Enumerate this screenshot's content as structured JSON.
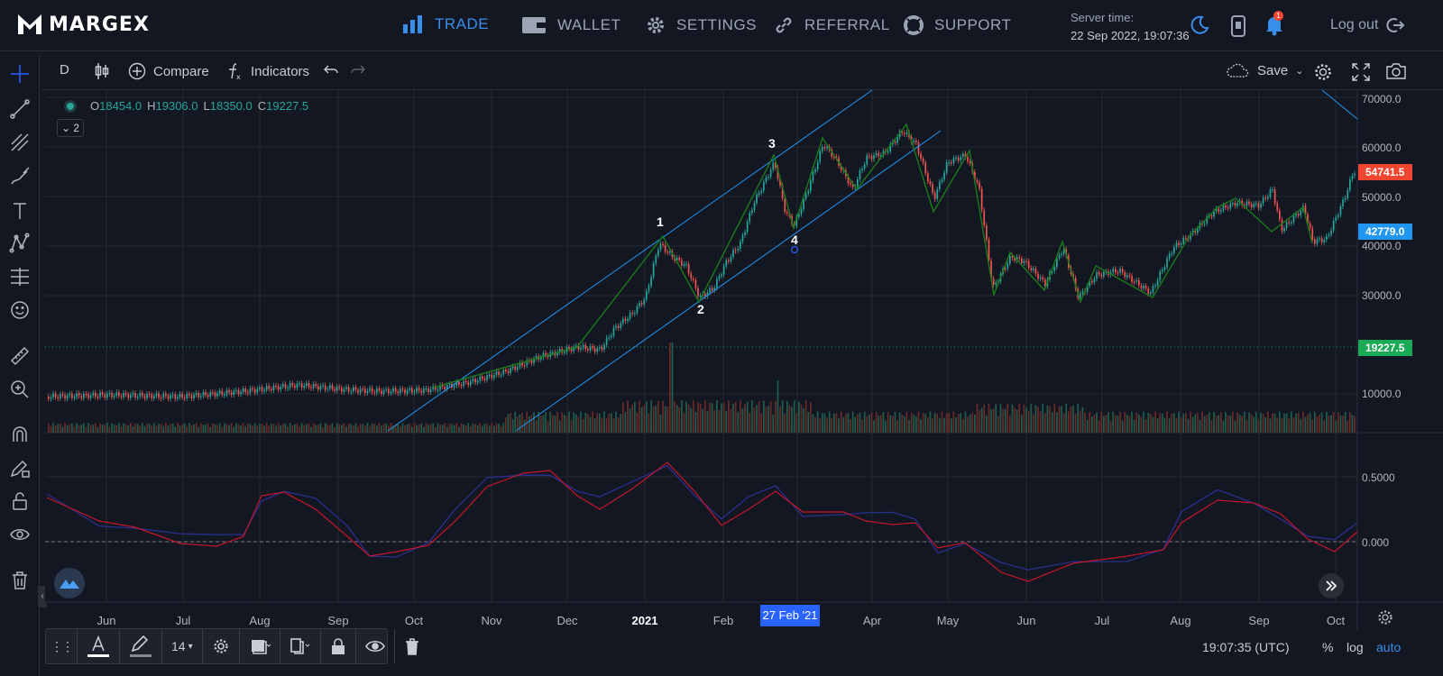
{
  "brand": {
    "name": "MARGEX"
  },
  "nav": [
    {
      "label": "TRADE",
      "icon": "bars-chart-icon",
      "active": true
    },
    {
      "label": "WALLET",
      "icon": "wallet-icon"
    },
    {
      "label": "SETTINGS",
      "icon": "gear-icon"
    },
    {
      "label": "REFERRAL",
      "icon": "link-icon"
    },
    {
      "label": "SUPPORT",
      "icon": "lifebuoy-icon"
    }
  ],
  "server": {
    "label": "Server time:",
    "value": "22 Sep 2022, 19:07:36"
  },
  "notifications": {
    "count": "1"
  },
  "logout": {
    "label": "Log out"
  },
  "toolbar": {
    "interval": "D",
    "compare": "Compare",
    "indicators": "Indicators",
    "save": "Save"
  },
  "legend": {
    "open_key": "O",
    "open": "18454.0",
    "high_key": "H",
    "high": "19306.0",
    "low_key": "L",
    "low": "18350.0",
    "close_key": "C",
    "close": "19227.5",
    "collapse_count": "2"
  },
  "price_axis": {
    "labels": [
      "70000.0",
      "60000.0",
      "50000.0",
      "40000.0",
      "30000.0",
      "10000.0"
    ],
    "indicator_labels": [
      "0.5000",
      "0.000"
    ],
    "tag_red": "54741.5",
    "tag_blue": "42779.0",
    "tag_green": "19227.5"
  },
  "time_axis": {
    "labels": [
      "Jun",
      "Jul",
      "Aug",
      "Sep",
      "Oct",
      "Nov",
      "Dec",
      "2021",
      "Feb",
      "Apr",
      "May",
      "Jun",
      "Jul",
      "Aug",
      "Sep",
      "Oct"
    ],
    "crosshair": "27 Feb '21"
  },
  "waves": [
    "1",
    "2",
    "3",
    "4"
  ],
  "drawing_bar": {
    "font_size": "14"
  },
  "status": {
    "time": "19:07:35 (UTC)",
    "percent": "%",
    "log": "log",
    "auto": "auto"
  },
  "colors": {
    "accent": "#3a8eeb",
    "up": "#26a69a",
    "down": "#ef5350",
    "tag_red": "#f0452f",
    "tag_blue": "#2196f3",
    "tag_green": "#1aaa55",
    "channel": "#2196f3",
    "zigzag": "#1b7a1b"
  }
}
